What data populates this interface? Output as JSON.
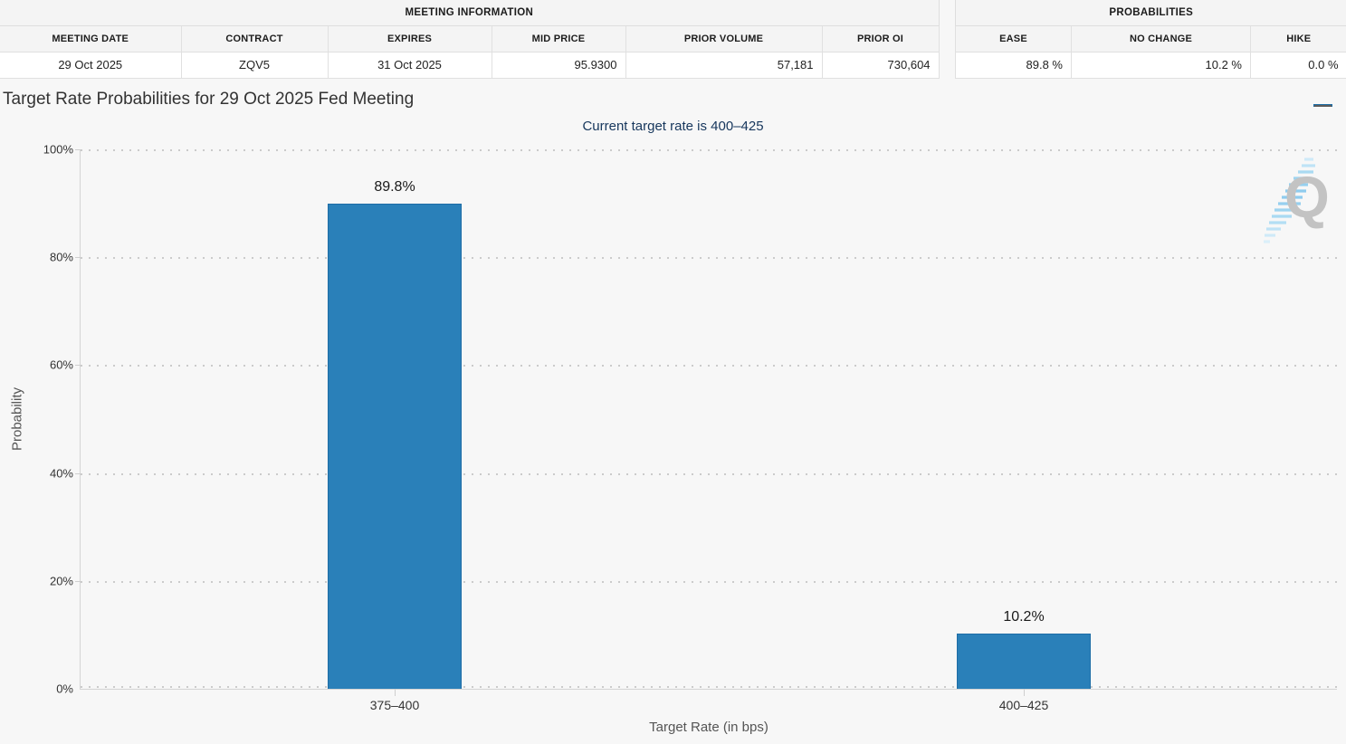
{
  "meeting_info": {
    "title": "MEETING INFORMATION",
    "columns": [
      "MEETING DATE",
      "CONTRACT",
      "EXPIRES",
      "MID PRICE",
      "PRIOR VOLUME",
      "PRIOR OI"
    ],
    "values": [
      "29 Oct 2025",
      "ZQV5",
      "31 Oct 2025",
      "95.9300",
      "57,181",
      "730,604"
    ]
  },
  "probabilities": {
    "title": "PROBABILITIES",
    "columns": [
      "EASE",
      "NO CHANGE",
      "HIKE"
    ],
    "values": [
      "89.8 %",
      "10.2 %",
      "0.0 %"
    ]
  },
  "icons": {
    "menu": "hamburger-menu-icon",
    "watermark_letter": "Q"
  },
  "chart_data": {
    "type": "bar",
    "title": "Target Rate Probabilities for 29 Oct 2025 Fed Meeting",
    "subtitle": "Current target rate is 400–425",
    "categories": [
      "375–400",
      "400–425"
    ],
    "values": [
      89.8,
      10.2
    ],
    "data_labels": [
      "89.8%",
      "10.2%"
    ],
    "xlabel": "Target Rate (in bps)",
    "ylabel": "Probability",
    "ylim": [
      0,
      100
    ],
    "yticks": [
      "0%",
      "20%",
      "40%",
      "60%",
      "80%",
      "100%"
    ],
    "grid": "horizontal-dotted",
    "legend": "none",
    "bar_color": "#2a80b9",
    "subtitle_color": "#16365c"
  }
}
